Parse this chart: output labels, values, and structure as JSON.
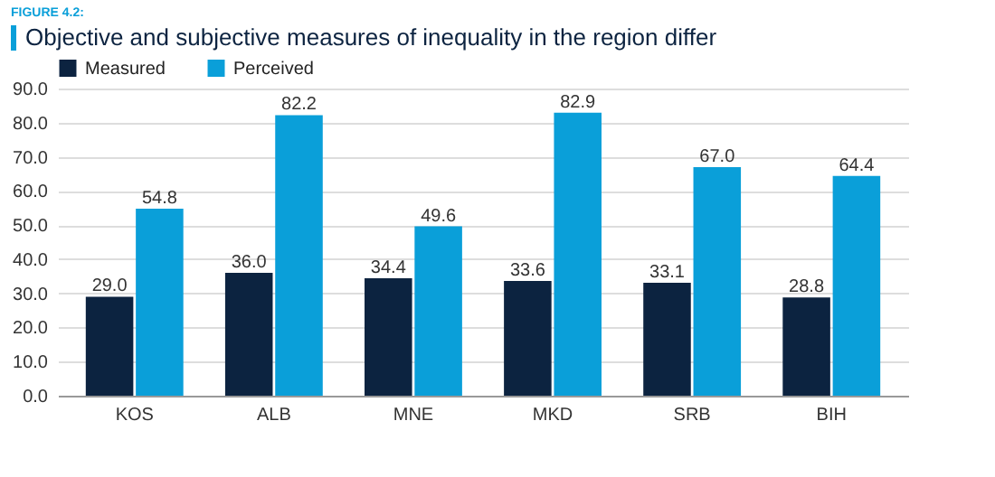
{
  "chart_data": {
    "type": "bar",
    "title": "Objective and subjective measures of inequality in the region differ",
    "annotations": [
      "FIGURE 4.2:"
    ],
    "categories": [
      "KOS",
      "ALB",
      "MNE",
      "MKD",
      "SRB",
      "BIH"
    ],
    "series": [
      {
        "name": "Measured",
        "color": "#0c2340",
        "values": [
          29.0,
          36.0,
          34.4,
          33.6,
          33.1,
          28.8
        ],
        "value_labels": [
          "29.0",
          "36.0",
          "34.4",
          "33.6",
          "33.1",
          "28.8"
        ]
      },
      {
        "name": "Perceived",
        "color": "#0a9fd9",
        "values": [
          54.8,
          82.2,
          49.6,
          82.9,
          67.0,
          64.4
        ],
        "value_labels": [
          "54.8",
          "82.2",
          "49.6",
          "82.9",
          "67.0",
          "64.4"
        ]
      }
    ],
    "ylim": [
      0,
      90
    ],
    "yticks": [
      {
        "value": 0,
        "label": "0.0"
      },
      {
        "value": 10,
        "label": "10.0"
      },
      {
        "value": 20,
        "label": "20.0"
      },
      {
        "value": 30,
        "label": "30.0"
      },
      {
        "value": 40,
        "label": "40.0"
      },
      {
        "value": 50,
        "label": "50.0"
      },
      {
        "value": 60,
        "label": "60.0"
      },
      {
        "value": 70,
        "label": "70.0"
      },
      {
        "value": 80,
        "label": "80.0"
      },
      {
        "value": 90,
        "label": "90.0"
      }
    ],
    "grid": "y",
    "legend": "top"
  }
}
